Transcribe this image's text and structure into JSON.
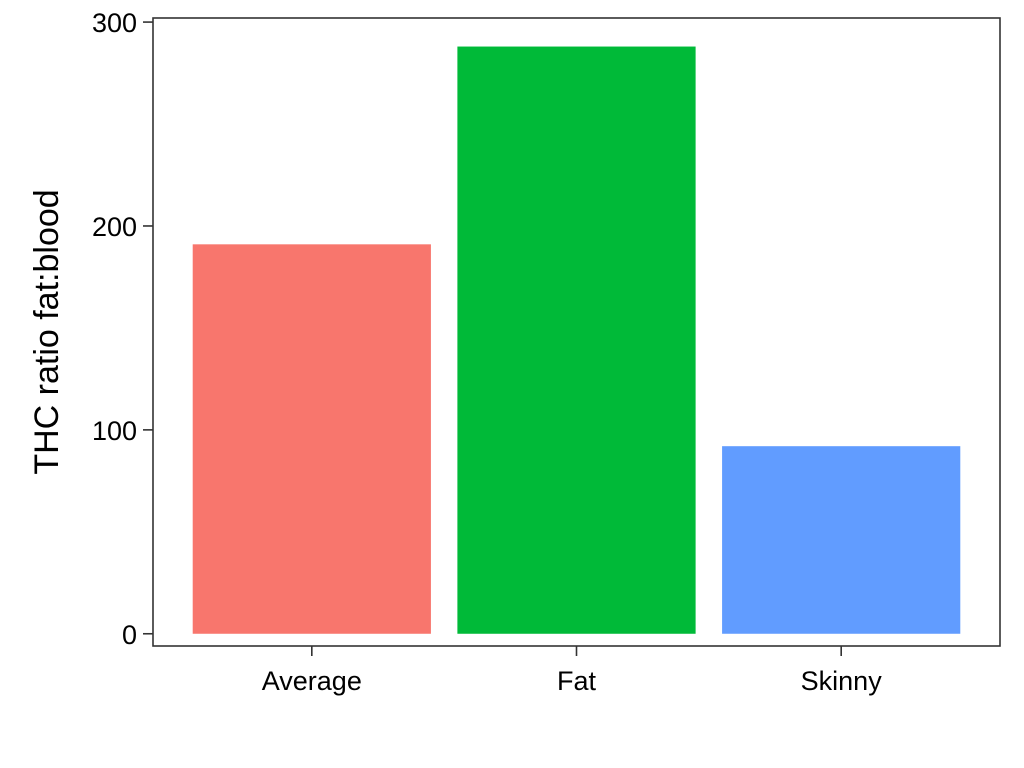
{
  "chart_data": {
    "type": "bar",
    "title": "",
    "xlabel": "",
    "ylabel": "THC ratio fat:blood",
    "categories": [
      "Average",
      "Fat",
      "Skinny"
    ],
    "values": [
      191,
      288,
      92
    ],
    "colors": [
      "#F8766D",
      "#00BA38",
      "#619CFF"
    ],
    "ylim": [
      -6,
      302
    ],
    "yticks": [
      0,
      100,
      200,
      300
    ],
    "grid": false,
    "legend": "none",
    "panel_border": true
  }
}
